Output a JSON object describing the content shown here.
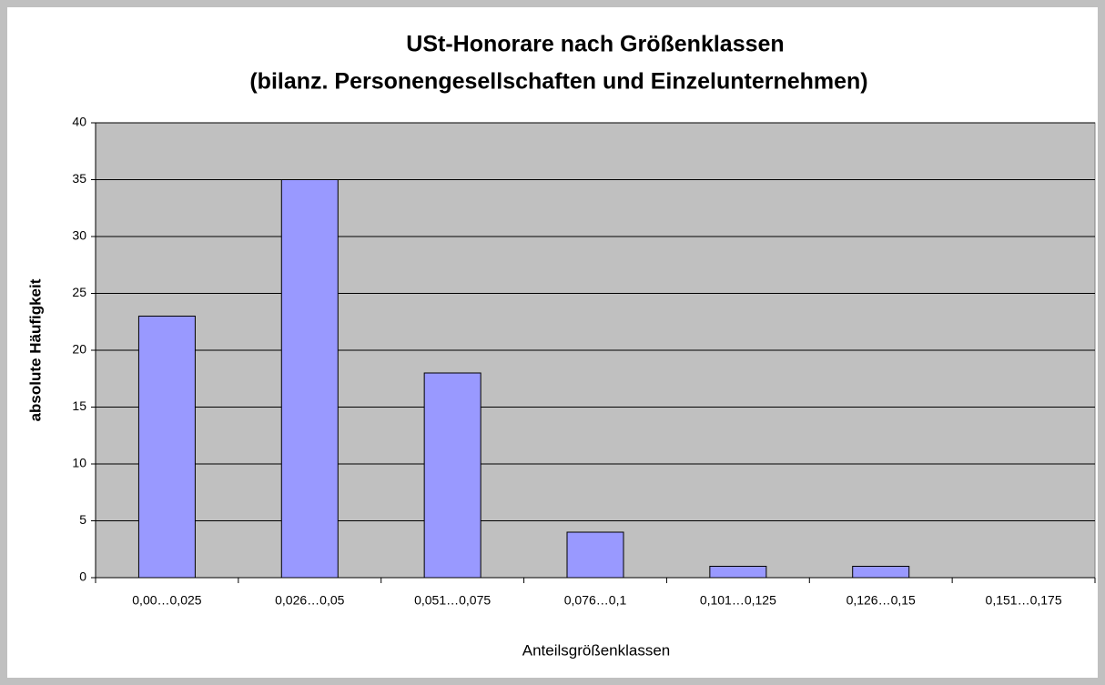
{
  "chart_data": {
    "type": "bar",
    "title": "USt-Honorare nach Größenklassen",
    "subtitle": "(bilanz. Personengesellschaften und Einzelunternehmen)",
    "x_label": "Anteilsgrößenklassen",
    "y_label": "absolute Häufigkeit",
    "categories": [
      "0,00…0,025",
      "0,026…0,05",
      "0,051…0,075",
      "0,076…0,1",
      "0,101…0,125",
      "0,126…0,15",
      "0,151…0,175"
    ],
    "values": [
      23,
      35,
      18,
      4,
      1,
      1,
      0
    ],
    "color": "#9999ff",
    "ylim": [
      0,
      40
    ],
    "yticks": [
      0,
      5,
      10,
      15,
      20,
      25,
      30,
      35,
      40
    ],
    "grid": true
  }
}
